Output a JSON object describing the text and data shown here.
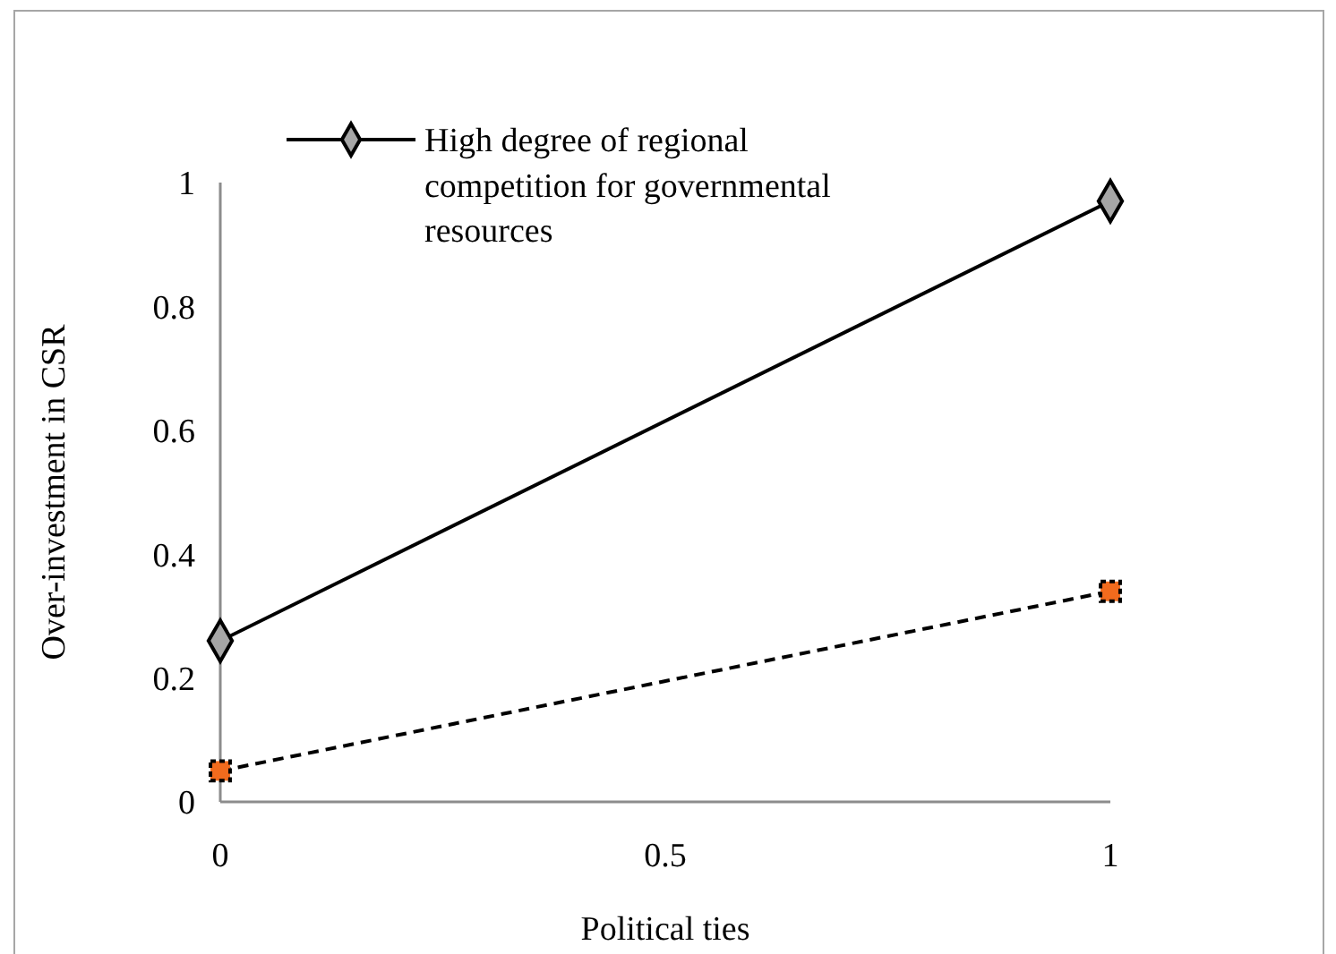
{
  "chart_data": {
    "type": "line",
    "xlabel": "Political ties",
    "ylabel": "Over-investment in CSR",
    "x": [
      0,
      1
    ],
    "series": [
      {
        "name": "High degree of regional competition for governmental resources",
        "color": "#000000",
        "colors": [
          "#a6a6a6",
          "#a6a6a6"
        ],
        "marker": "diamond",
        "line_style": "solid",
        "values": [
          0.26,
          0.97
        ]
      },
      {
        "color": "#000000",
        "colors": [
          "#f26b1d",
          "#f26b1d"
        ],
        "marker": "square",
        "line_style": "dashed",
        "values": [
          0.05,
          0.34
        ]
      }
    ],
    "xlim": [
      0,
      1
    ],
    "xticks": [
      0,
      0.5,
      1
    ],
    "ylim": [
      0,
      1
    ],
    "yticks": [
      0,
      0.2,
      0.4,
      0.6,
      0.8,
      1
    ],
    "grid": false,
    "legend": "top left"
  }
}
